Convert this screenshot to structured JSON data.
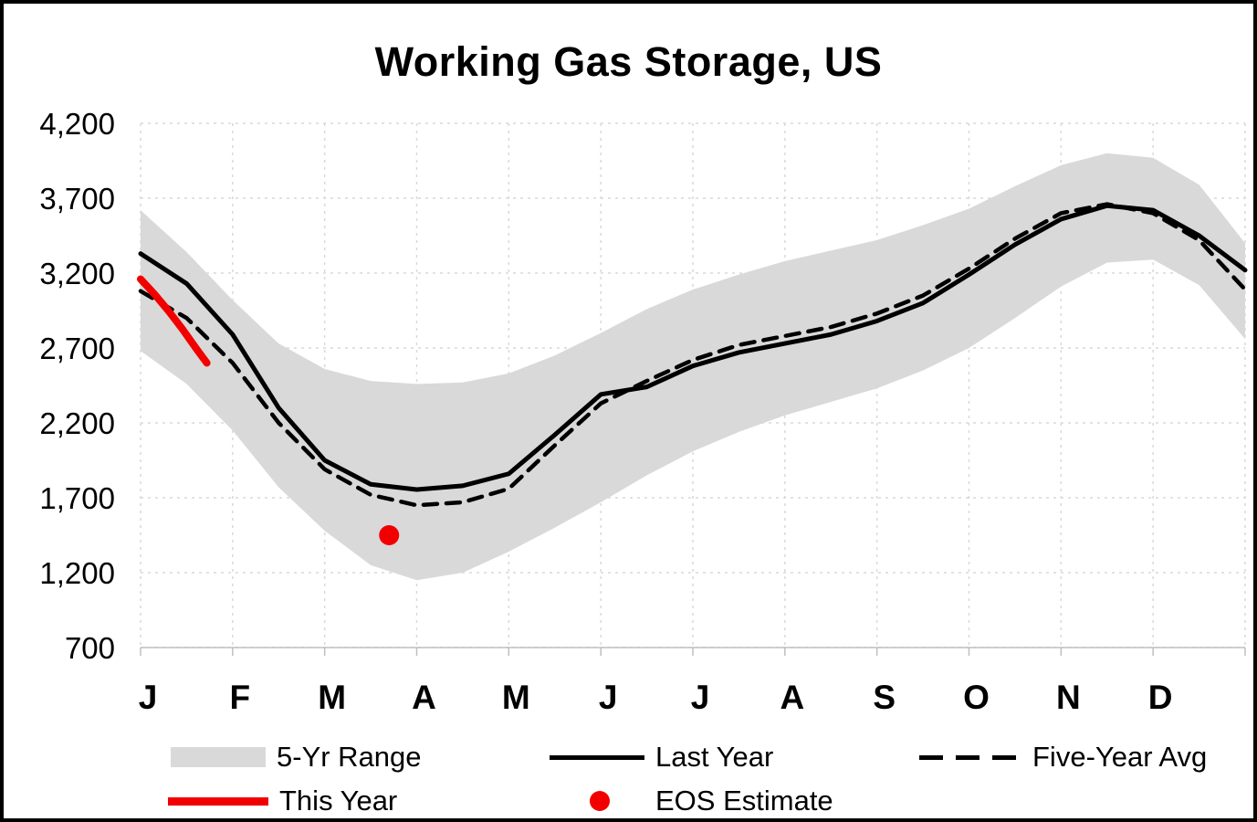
{
  "title": "Working Gas Storage, US",
  "chart_data": {
    "type": "line",
    "title": "Working Gas Storage, US",
    "xlabel": "",
    "ylabel": "",
    "x_unit": "months (Jan=0)",
    "xlim": [
      0,
      12
    ],
    "ylim": [
      700,
      4200
    ],
    "grid": "dashed-light-gray",
    "legend_position": "bottom",
    "x_tick_labels": [
      "J",
      "F",
      "M",
      "A",
      "M",
      "J",
      "J",
      "A",
      "S",
      "O",
      "N",
      "D"
    ],
    "y_ticks": [
      {
        "value": 700,
        "label": "700"
      },
      {
        "value": 1200,
        "label": "1,200"
      },
      {
        "value": 1700,
        "label": "1,700"
      },
      {
        "value": 2200,
        "label": "2,200"
      },
      {
        "value": 2700,
        "label": "2,700"
      },
      {
        "value": 3200,
        "label": "3,200"
      },
      {
        "value": 3700,
        "label": "3,700"
      },
      {
        "value": 4200,
        "label": "4,200"
      }
    ],
    "band": {
      "name": "5-Yr Range",
      "color": "#d9d9d9",
      "x": [
        0,
        0.5,
        1,
        1.5,
        2,
        2.5,
        3,
        3.5,
        4,
        4.5,
        5,
        5.5,
        6,
        6.5,
        7,
        7.5,
        8,
        8.5,
        9,
        9.5,
        10,
        10.5,
        11,
        11.5,
        12
      ],
      "upper": [
        3620,
        3340,
        3020,
        2730,
        2560,
        2480,
        2460,
        2470,
        2530,
        2650,
        2800,
        2960,
        3090,
        3190,
        3280,
        3350,
        3420,
        3520,
        3630,
        3780,
        3920,
        4000,
        3970,
        3790,
        3400
      ],
      "lower": [
        2680,
        2460,
        2150,
        1770,
        1480,
        1250,
        1150,
        1200,
        1340,
        1500,
        1670,
        1850,
        2010,
        2140,
        2250,
        2340,
        2430,
        2550,
        2700,
        2900,
        3110,
        3270,
        3290,
        3120,
        2760
      ]
    },
    "series": [
      {
        "name": "Last Year",
        "style": "solid",
        "color": "#000000",
        "width": 5,
        "dash": null,
        "x": [
          0,
          0.5,
          1,
          1.5,
          2,
          2.5,
          3,
          3.5,
          4,
          4.5,
          5,
          5.5,
          6,
          6.5,
          7,
          7.5,
          8,
          8.5,
          9,
          9.5,
          10,
          10.5,
          11,
          11.5,
          12
        ],
        "values": [
          3330,
          3130,
          2790,
          2300,
          1950,
          1790,
          1755,
          1780,
          1860,
          2120,
          2390,
          2440,
          2580,
          2670,
          2730,
          2790,
          2880,
          3000,
          3190,
          3390,
          3560,
          3650,
          3620,
          3450,
          3220
        ]
      },
      {
        "name": "Five-Year Avg",
        "style": "dashed",
        "color": "#000000",
        "width": 4.5,
        "dash": "15 10",
        "x": [
          0,
          0.5,
          1,
          1.5,
          2,
          2.5,
          3,
          3.5,
          4,
          4.5,
          5,
          5.5,
          6,
          6.5,
          7,
          7.5,
          8,
          8.5,
          9,
          9.5,
          10,
          10.5,
          11,
          11.5,
          12
        ],
        "values": [
          3080,
          2900,
          2600,
          2200,
          1890,
          1720,
          1650,
          1670,
          1760,
          2050,
          2330,
          2480,
          2620,
          2720,
          2780,
          2840,
          2930,
          3050,
          3230,
          3430,
          3600,
          3660,
          3600,
          3420,
          3090
        ]
      },
      {
        "name": "This Year",
        "style": "solid",
        "color": "#f20000",
        "width": 8,
        "dash": null,
        "x": [
          0,
          0.15,
          0.3,
          0.45,
          0.6,
          0.72
        ],
        "values": [
          3160,
          3060,
          2950,
          2830,
          2700,
          2600
        ]
      }
    ],
    "points": [
      {
        "name": "EOS Estimate",
        "color": "#f20000",
        "x": 2.7,
        "value": 1450,
        "radius": 11
      }
    ]
  },
  "legend": {
    "items": [
      {
        "label": "5-Yr Range",
        "swatch": "gray-band"
      },
      {
        "label": "Last Year",
        "swatch": "black-solid-line"
      },
      {
        "label": "Five-Year Avg",
        "swatch": "black-dashed-line"
      },
      {
        "label": "This Year",
        "swatch": "red-thick-line"
      },
      {
        "label": "EOS Estimate",
        "swatch": "red-dot"
      }
    ]
  }
}
